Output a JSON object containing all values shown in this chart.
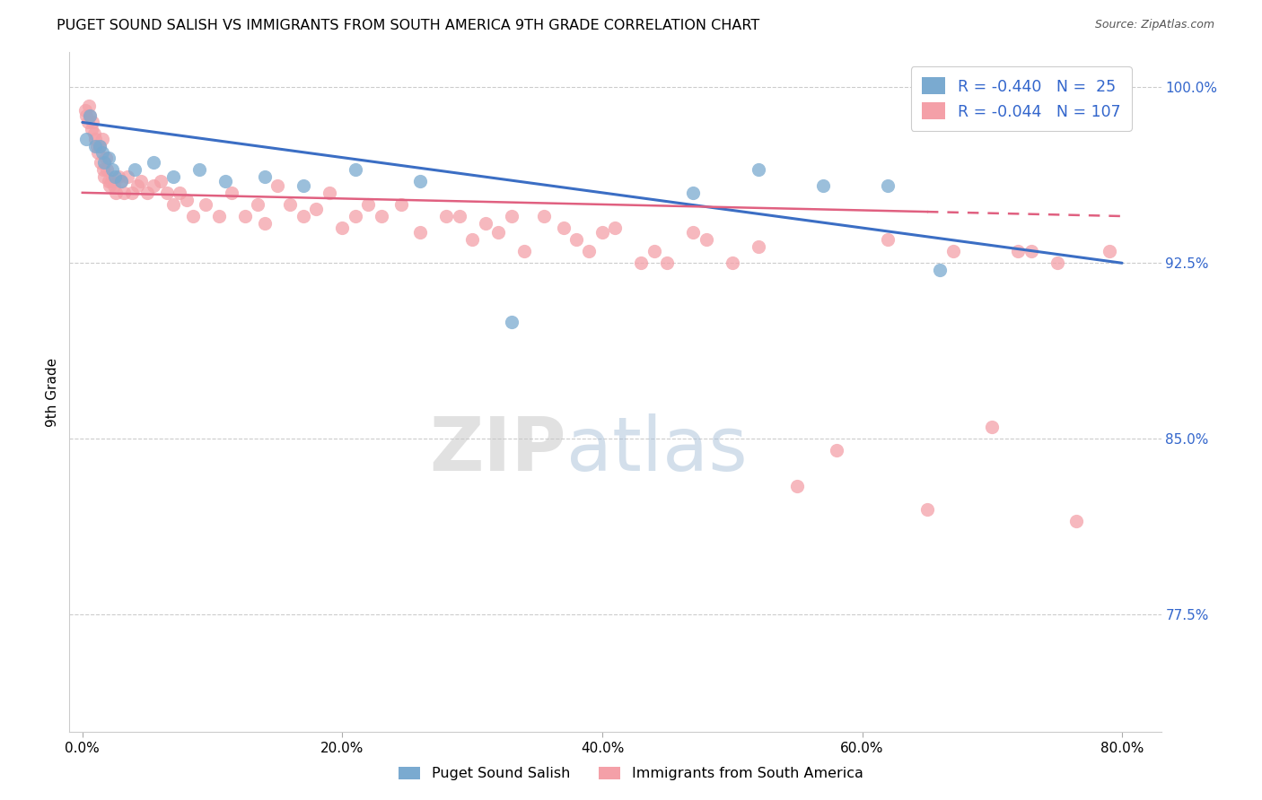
{
  "title": "PUGET SOUND SALISH VS IMMIGRANTS FROM SOUTH AMERICA 9TH GRADE CORRELATION CHART",
  "source": "Source: ZipAtlas.com",
  "ylabel": "9th Grade",
  "ylim": [
    72.5,
    101.5
  ],
  "xlim": [
    -1.0,
    83.0
  ],
  "ytick_vals": [
    100.0,
    92.5,
    85.0,
    77.5
  ],
  "xtick_vals": [
    0.0,
    20.0,
    40.0,
    60.0,
    80.0
  ],
  "blue_R": -0.44,
  "blue_N": 25,
  "pink_R": -0.044,
  "pink_N": 107,
  "blue_color": "#7AAAD0",
  "pink_color": "#F4A0A8",
  "blue_line_color": "#3B6EC4",
  "pink_line_color": "#E06080",
  "grid_color": "#CCCCCC",
  "legend_label_blue": "Puget Sound Salish",
  "legend_label_pink": "Immigrants from South America",
  "blue_line_x0": 0.0,
  "blue_line_y0": 98.5,
  "blue_line_x1": 80.0,
  "blue_line_y1": 92.5,
  "pink_line_x0": 0.0,
  "pink_line_y0": 95.5,
  "pink_line_x1": 80.0,
  "pink_line_y1": 94.5,
  "pink_solid_end": 65.0,
  "blue_x": [
    0.3,
    0.6,
    1.0,
    1.3,
    1.5,
    1.7,
    2.0,
    2.3,
    2.5,
    3.0,
    4.0,
    5.5,
    7.0,
    9.0,
    11.0,
    14.0,
    17.0,
    21.0,
    26.0,
    33.0,
    47.0,
    52.0,
    57.0,
    62.0,
    66.0
  ],
  "blue_y": [
    97.8,
    98.8,
    97.5,
    97.5,
    97.2,
    96.8,
    97.0,
    96.5,
    96.2,
    96.0,
    96.5,
    96.8,
    96.2,
    96.5,
    96.0,
    96.2,
    95.8,
    96.5,
    96.0,
    90.0,
    95.5,
    96.5,
    95.8,
    95.8,
    92.2
  ],
  "pink_x": [
    0.2,
    0.3,
    0.4,
    0.5,
    0.6,
    0.7,
    0.8,
    0.9,
    1.0,
    1.1,
    1.2,
    1.3,
    1.4,
    1.5,
    1.6,
    1.7,
    1.8,
    1.9,
    2.0,
    2.1,
    2.2,
    2.4,
    2.6,
    2.8,
    3.0,
    3.2,
    3.5,
    3.8,
    4.2,
    4.5,
    5.0,
    5.5,
    6.0,
    6.5,
    7.0,
    7.5,
    8.0,
    8.5,
    9.5,
    10.5,
    11.5,
    12.5,
    13.5,
    14.0,
    15.0,
    16.0,
    17.0,
    18.0,
    19.0,
    20.0,
    21.0,
    22.0,
    23.0,
    24.5,
    26.0,
    28.0,
    29.0,
    30.0,
    31.0,
    32.0,
    33.0,
    34.0,
    35.5,
    37.0,
    38.0,
    39.0,
    40.0,
    41.0,
    43.0,
    44.0,
    45.0,
    47.0,
    48.0,
    50.0,
    52.0,
    55.0,
    58.0,
    62.0,
    65.0,
    67.0,
    70.0,
    72.0,
    73.0,
    75.0,
    76.5,
    79.0
  ],
  "pink_y": [
    99.0,
    98.8,
    98.5,
    99.2,
    98.8,
    98.2,
    98.5,
    98.0,
    97.8,
    97.5,
    97.2,
    97.5,
    96.8,
    97.8,
    96.5,
    96.2,
    97.0,
    96.5,
    96.0,
    95.8,
    96.0,
    95.8,
    95.5,
    96.2,
    96.0,
    95.5,
    96.2,
    95.5,
    95.8,
    96.0,
    95.5,
    95.8,
    96.0,
    95.5,
    95.0,
    95.5,
    95.2,
    94.5,
    95.0,
    94.5,
    95.5,
    94.5,
    95.0,
    94.2,
    95.8,
    95.0,
    94.5,
    94.8,
    95.5,
    94.0,
    94.5,
    95.0,
    94.5,
    95.0,
    93.8,
    94.5,
    94.5,
    93.5,
    94.2,
    93.8,
    94.5,
    93.0,
    94.5,
    94.0,
    93.5,
    93.0,
    93.8,
    94.0,
    92.5,
    93.0,
    92.5,
    93.8,
    93.5,
    92.5,
    93.2,
    83.0,
    84.5,
    93.5,
    82.0,
    93.0,
    85.5,
    93.0,
    93.0,
    92.5,
    81.5,
    93.0
  ]
}
